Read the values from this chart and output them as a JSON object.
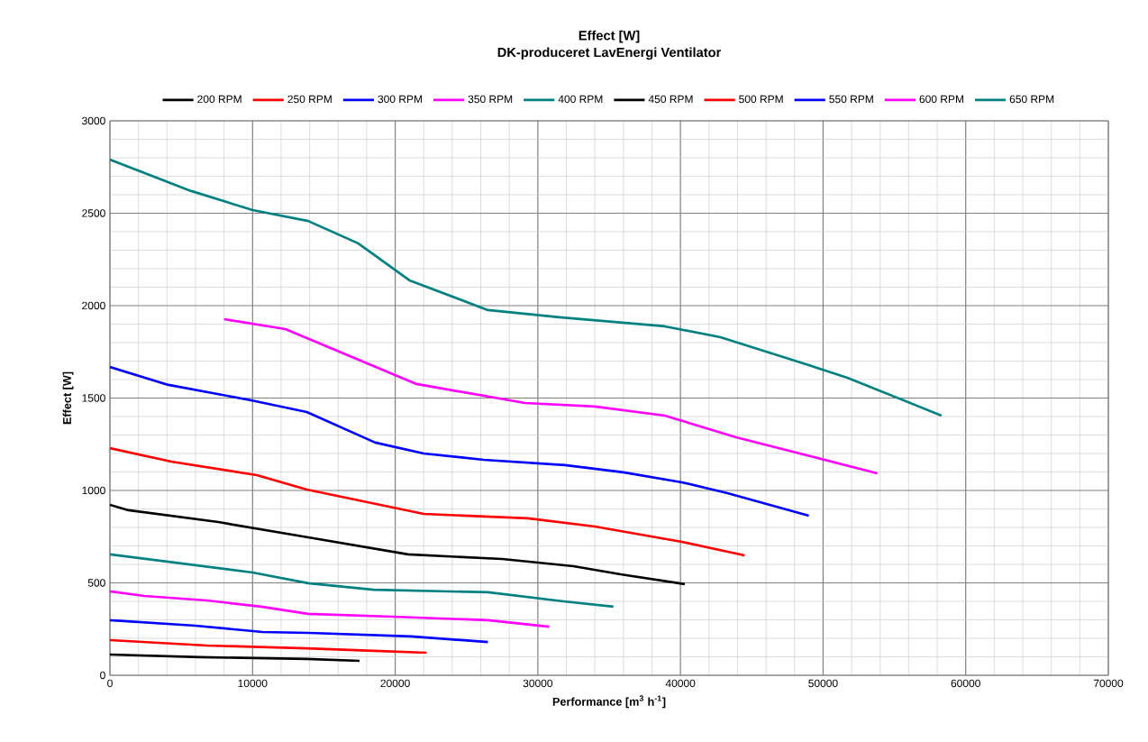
{
  "chart_data": {
    "type": "line",
    "title": "Effect [W]",
    "subtitle": "DK-produceret LavEnergi Ventilator",
    "xlabel": "Performance [m$^{3}$ h$^{-1}$]",
    "ylabel": "Effect [W]",
    "xlim": [
      0,
      70000
    ],
    "ylim": [
      0,
      3000
    ],
    "xticks": [
      0,
      10000,
      20000,
      30000,
      40000,
      50000,
      60000,
      70000
    ],
    "yticks": [
      0,
      500,
      1000,
      1500,
      2000,
      2500,
      3000
    ],
    "grid": true,
    "legend": "top",
    "marker": "none",
    "line_style": "solid",
    "series": [
      {
        "name": "200 RPM",
        "color": "#000000",
        "x": [
          0,
          6300,
          13800,
          17500
        ],
        "values": [
          112,
          98,
          88,
          78
        ]
      },
      {
        "name": "250 RPM",
        "color": "#ff0000",
        "x": [
          0,
          6800,
          13800,
          18500,
          22200
        ],
        "values": [
          190,
          161,
          146,
          132,
          122
        ]
      },
      {
        "name": "300 RPM",
        "color": "#0000ff",
        "x": [
          0,
          6000,
          10700,
          14000,
          21100,
          26500
        ],
        "values": [
          298,
          268,
          234,
          229,
          210,
          180
        ]
      },
      {
        "name": "350 RPM",
        "color": "#ff00ff",
        "x": [
          0,
          2400,
          6800,
          10600,
          13900,
          19800,
          26500,
          30800
        ],
        "values": [
          454,
          429,
          405,
          371,
          332,
          317,
          298,
          263
        ]
      },
      {
        "name": "400 RPM",
        "color": "#008080",
        "x": [
          0,
          10000,
          13900,
          18500,
          26500,
          31800,
          35300
        ],
        "values": [
          654,
          556,
          498,
          463,
          449,
          400,
          371
        ]
      },
      {
        "name": "450 RPM",
        "color": "#000000",
        "x": [
          0,
          1300,
          7600,
          13900,
          20900,
          27500,
          32500,
          35800,
          40300
        ],
        "values": [
          922,
          893,
          829,
          746,
          654,
          629,
          590,
          546,
          493
        ]
      },
      {
        "name": "500 RPM",
        "color": "#ff0000",
        "x": [
          0,
          4300,
          10300,
          13800,
          22000,
          29300,
          34000,
          40100,
          44500
        ],
        "values": [
          1229,
          1156,
          1083,
          1005,
          873,
          849,
          805,
          722,
          649
        ]
      },
      {
        "name": "550 RPM",
        "color": "#0000ff",
        "x": [
          0,
          4100,
          9900,
          13800,
          18600,
          22000,
          26200,
          31900,
          36000,
          40100,
          43300,
          49000
        ],
        "values": [
          1668,
          1571,
          1488,
          1424,
          1259,
          1200,
          1166,
          1137,
          1098,
          1044,
          985,
          863
        ]
      },
      {
        "name": "600 RPM",
        "color": "#ff00ff",
        "x": [
          8000,
          12300,
          21500,
          29100,
          34000,
          38900,
          43900,
          53800
        ],
        "values": [
          1927,
          1873,
          1576,
          1473,
          1454,
          1405,
          1288,
          1093
        ]
      },
      {
        "name": "650 RPM",
        "color": "#008080",
        "x": [
          0,
          5700,
          10000,
          13900,
          17400,
          21000,
          26500,
          31500,
          38900,
          42800,
          48800,
          51700,
          58300
        ],
        "values": [
          2790,
          2620,
          2517,
          2458,
          2337,
          2137,
          1976,
          1937,
          1888,
          1829,
          1683,
          1610,
          1405
        ]
      }
    ]
  }
}
